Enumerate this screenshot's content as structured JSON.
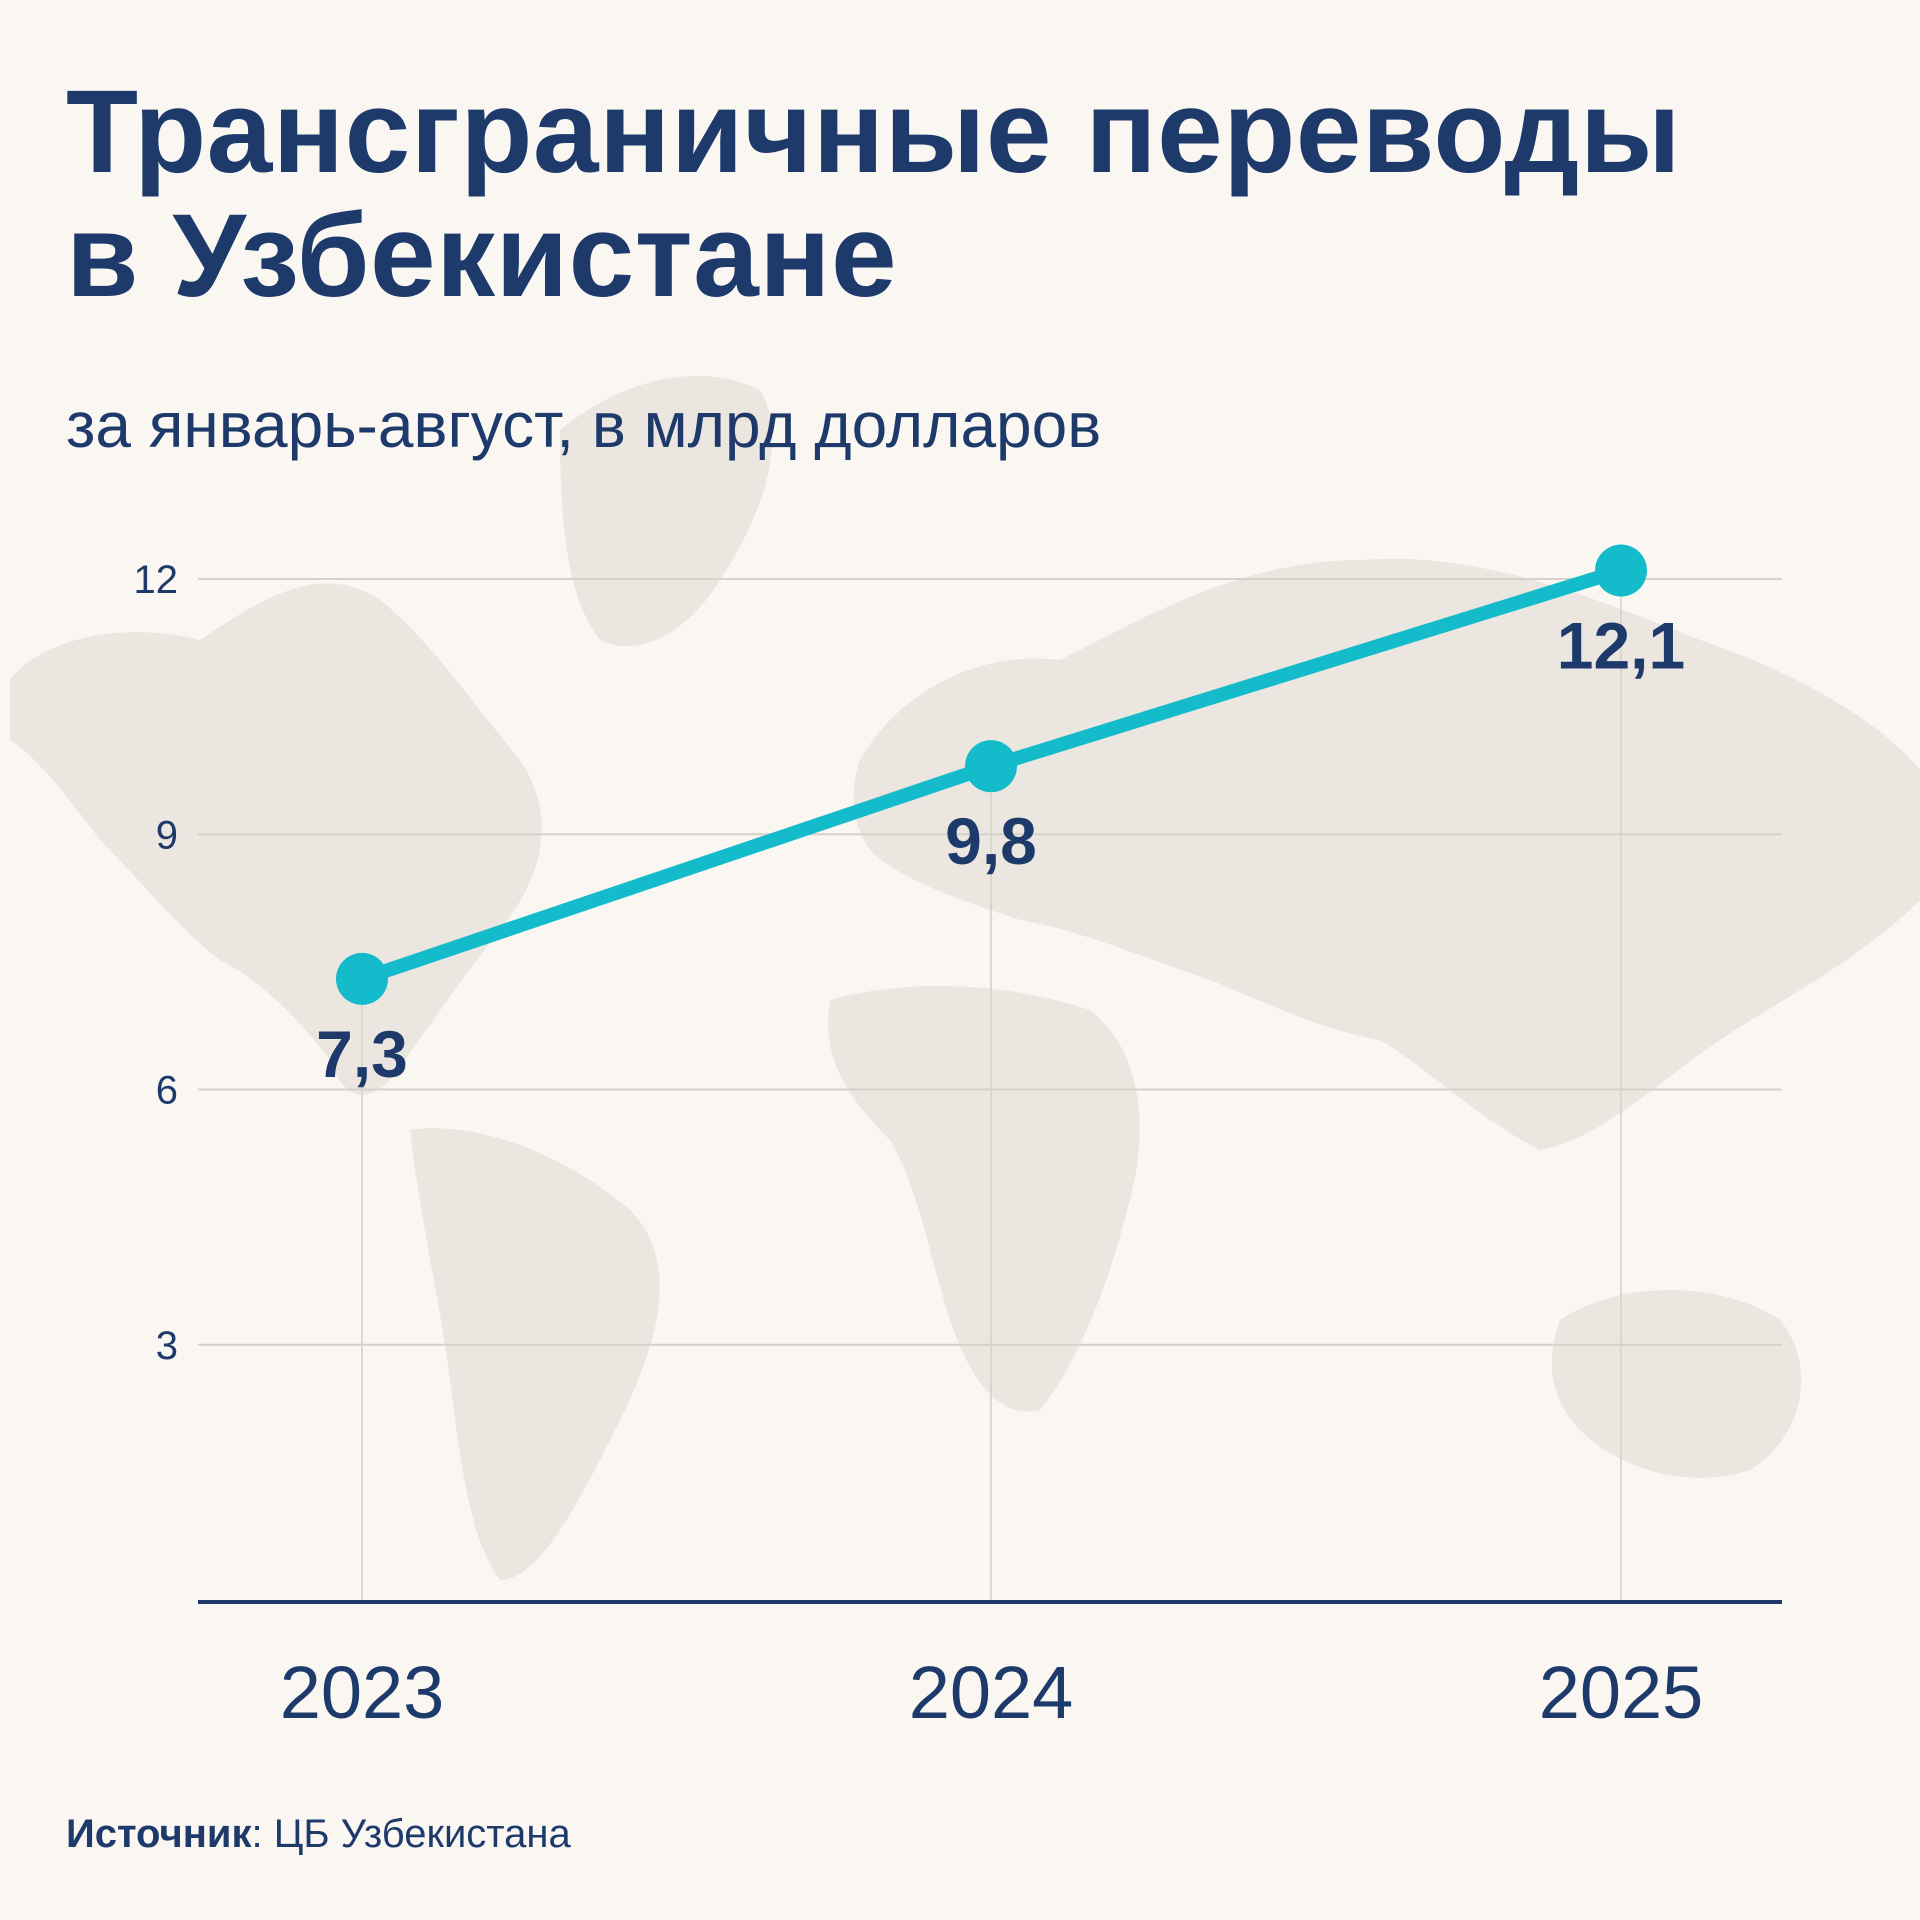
{
  "title_lines": [
    "Трансграничные переводы",
    "в Узбекистане"
  ],
  "subtitle": "за январь-август, в млрд долларов",
  "source": {
    "label": "Источник",
    "text": ": ЦБ Узбекистана"
  },
  "colors": {
    "accent": "#14bccb",
    "text": "#1d3a6b",
    "grid": "#d6d2cb",
    "background": "#faf7f2",
    "map": "#ebe6df"
  },
  "chart_data": {
    "type": "line",
    "categories": [
      "2023",
      "2024",
      "2025"
    ],
    "series": [
      {
        "values": [
          7.3,
          9.8,
          12.1
        ]
      }
    ],
    "data_labels": [
      "7,3",
      "9,8",
      "12,1"
    ],
    "yticks": [
      3,
      6,
      9,
      12
    ],
    "ylim": [
      0,
      12.5
    ],
    "title": "Трансграничные переводы в Узбекистане",
    "subtitle": "за январь-август, в млрд долларов",
    "xlabel": "",
    "ylabel": "",
    "grid": true,
    "legend": "none"
  }
}
